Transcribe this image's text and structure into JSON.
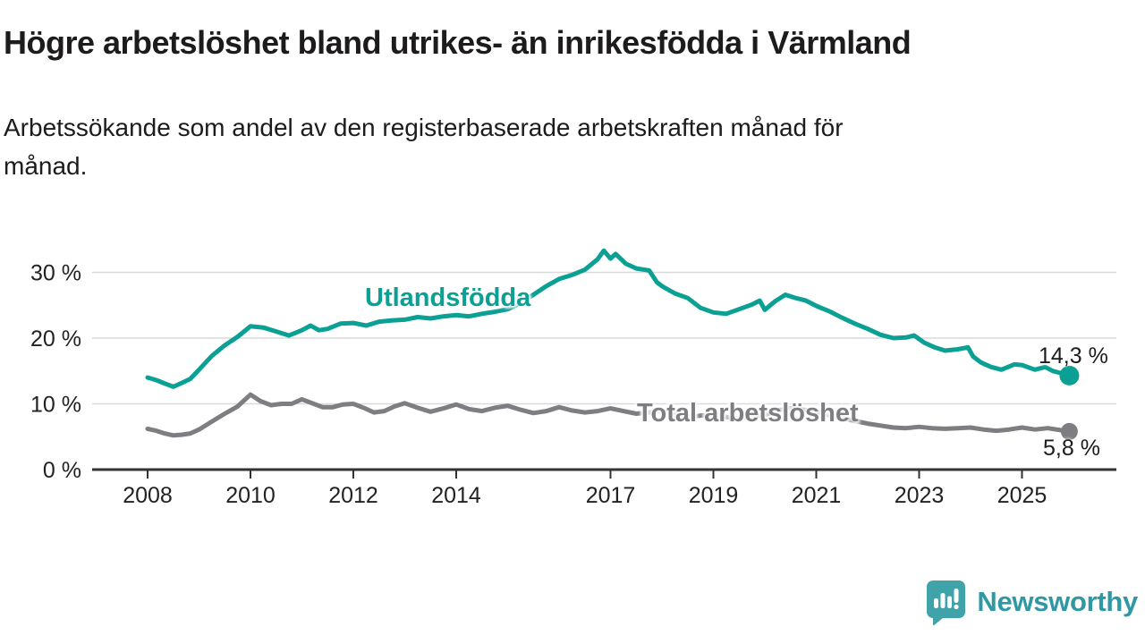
{
  "title": "Högre arbetslöshet bland utrikes- än inrikesfödda i Värmland",
  "subtitle_line1": "Arbetssökande som andel av den registerbaserade arbetskraften månad för",
  "subtitle_line2": "månad.",
  "branding": {
    "name": "Newsworthy",
    "icon": "speech-bubble-bar-chart-icon",
    "icon_color": "#41a3aa",
    "text_color": "#2f98a2"
  },
  "chart_data": {
    "type": "line",
    "title": "Högre arbetslöshet bland utrikes- än inrikesfödda i Värmland",
    "xlabel": "",
    "ylabel": "Arbetssökande som andel av den registerbaserade arbetskraften (%)",
    "xlim": [
      2006.9,
      2026.5
    ],
    "ylim": [
      0,
      34
    ],
    "grid": "horizontal",
    "legend_position": "inline-labels",
    "axis_color": "#333333",
    "grid_color": "#d9d9d9",
    "y_ticks": [
      {
        "value": 0,
        "label": "0 %"
      },
      {
        "value": 10,
        "label": "10 %"
      },
      {
        "value": 20,
        "label": "20 %"
      },
      {
        "value": 30,
        "label": "30 %"
      }
    ],
    "x_ticks": [
      {
        "value": 2008,
        "label": "2008"
      },
      {
        "value": 2010,
        "label": "2010"
      },
      {
        "value": 2012,
        "label": "2012"
      },
      {
        "value": 2014,
        "label": "2014"
      },
      {
        "value": 2017,
        "label": "2017"
      },
      {
        "value": 2019,
        "label": "2019"
      },
      {
        "value": 2021,
        "label": "2021"
      },
      {
        "value": 2023,
        "label": "2023"
      },
      {
        "value": 2025,
        "label": "2025"
      }
    ],
    "series": [
      {
        "name": "Utlandsfödda",
        "color": "#0aa093",
        "end_label": "14,3 %",
        "end_value": 14.3,
        "points": [
          [
            2008.0,
            14.0
          ],
          [
            2008.17,
            13.6
          ],
          [
            2008.33,
            13.1
          ],
          [
            2008.5,
            12.6
          ],
          [
            2008.67,
            13.2
          ],
          [
            2008.83,
            13.8
          ],
          [
            2009.0,
            15.2
          ],
          [
            2009.25,
            17.3
          ],
          [
            2009.5,
            18.9
          ],
          [
            2009.75,
            20.2
          ],
          [
            2010.0,
            21.8
          ],
          [
            2010.25,
            21.6
          ],
          [
            2010.5,
            21.0
          ],
          [
            2010.75,
            20.4
          ],
          [
            2011.0,
            21.2
          ],
          [
            2011.17,
            21.9
          ],
          [
            2011.33,
            21.2
          ],
          [
            2011.5,
            21.4
          ],
          [
            2011.75,
            22.2
          ],
          [
            2012.0,
            22.3
          ],
          [
            2012.25,
            21.9
          ],
          [
            2012.5,
            22.5
          ],
          [
            2012.75,
            22.7
          ],
          [
            2013.0,
            22.8
          ],
          [
            2013.25,
            23.2
          ],
          [
            2013.5,
            23.0
          ],
          [
            2013.75,
            23.3
          ],
          [
            2014.0,
            23.5
          ],
          [
            2014.25,
            23.3
          ],
          [
            2014.5,
            23.7
          ],
          [
            2014.75,
            24.0
          ],
          [
            2015.0,
            24.4
          ],
          [
            2015.25,
            25.3
          ],
          [
            2015.5,
            26.6
          ],
          [
            2015.75,
            27.9
          ],
          [
            2016.0,
            29.0
          ],
          [
            2016.25,
            29.6
          ],
          [
            2016.5,
            30.4
          ],
          [
            2016.75,
            32.0
          ],
          [
            2016.87,
            33.3
          ],
          [
            2017.0,
            32.1
          ],
          [
            2017.1,
            32.8
          ],
          [
            2017.3,
            31.3
          ],
          [
            2017.5,
            30.6
          ],
          [
            2017.75,
            30.3
          ],
          [
            2017.9,
            28.5
          ],
          [
            2018.0,
            27.9
          ],
          [
            2018.25,
            26.8
          ],
          [
            2018.5,
            26.1
          ],
          [
            2018.75,
            24.6
          ],
          [
            2019.0,
            23.9
          ],
          [
            2019.25,
            23.7
          ],
          [
            2019.5,
            24.4
          ],
          [
            2019.75,
            25.1
          ],
          [
            2019.9,
            25.7
          ],
          [
            2020.0,
            24.3
          ],
          [
            2020.2,
            25.6
          ],
          [
            2020.4,
            26.6
          ],
          [
            2020.6,
            26.1
          ],
          [
            2020.8,
            25.7
          ],
          [
            2021.0,
            24.9
          ],
          [
            2021.25,
            24.1
          ],
          [
            2021.5,
            23.1
          ],
          [
            2021.75,
            22.2
          ],
          [
            2022.0,
            21.4
          ],
          [
            2022.25,
            20.5
          ],
          [
            2022.5,
            20.0
          ],
          [
            2022.75,
            20.1
          ],
          [
            2022.9,
            20.4
          ],
          [
            2023.1,
            19.3
          ],
          [
            2023.3,
            18.6
          ],
          [
            2023.5,
            18.1
          ],
          [
            2023.75,
            18.3
          ],
          [
            2023.95,
            18.6
          ],
          [
            2024.05,
            17.2
          ],
          [
            2024.2,
            16.3
          ],
          [
            2024.4,
            15.6
          ],
          [
            2024.6,
            15.2
          ],
          [
            2024.85,
            16.0
          ],
          [
            2025.0,
            15.9
          ],
          [
            2025.25,
            15.2
          ],
          [
            2025.45,
            15.6
          ],
          [
            2025.6,
            15.0
          ],
          [
            2025.75,
            14.7
          ],
          [
            2025.92,
            14.3
          ]
        ]
      },
      {
        "name": "Total arbetslöshet",
        "color": "#7d7d82",
        "end_label": "5,8 %",
        "end_value": 5.8,
        "points": [
          [
            2008.0,
            6.2
          ],
          [
            2008.17,
            5.9
          ],
          [
            2008.33,
            5.5
          ],
          [
            2008.5,
            5.2
          ],
          [
            2008.67,
            5.3
          ],
          [
            2008.83,
            5.5
          ],
          [
            2009.0,
            6.1
          ],
          [
            2009.25,
            7.3
          ],
          [
            2009.5,
            8.5
          ],
          [
            2009.75,
            9.6
          ],
          [
            2010.0,
            11.4
          ],
          [
            2010.2,
            10.4
          ],
          [
            2010.4,
            9.8
          ],
          [
            2010.6,
            10.0
          ],
          [
            2010.8,
            10.0
          ],
          [
            2011.0,
            10.7
          ],
          [
            2011.2,
            10.1
          ],
          [
            2011.4,
            9.5
          ],
          [
            2011.6,
            9.5
          ],
          [
            2011.8,
            9.9
          ],
          [
            2012.0,
            10.0
          ],
          [
            2012.2,
            9.4
          ],
          [
            2012.4,
            8.7
          ],
          [
            2012.6,
            8.9
          ],
          [
            2012.8,
            9.6
          ],
          [
            2013.0,
            10.1
          ],
          [
            2013.25,
            9.4
          ],
          [
            2013.5,
            8.8
          ],
          [
            2013.75,
            9.3
          ],
          [
            2014.0,
            9.9
          ],
          [
            2014.25,
            9.2
          ],
          [
            2014.5,
            8.9
          ],
          [
            2014.75,
            9.4
          ],
          [
            2015.0,
            9.7
          ],
          [
            2015.25,
            9.1
          ],
          [
            2015.5,
            8.6
          ],
          [
            2015.75,
            8.9
          ],
          [
            2016.0,
            9.5
          ],
          [
            2016.25,
            9.0
          ],
          [
            2016.5,
            8.7
          ],
          [
            2016.75,
            8.9
          ],
          [
            2017.0,
            9.3
          ],
          [
            2017.25,
            8.9
          ],
          [
            2017.5,
            8.5
          ],
          [
            2017.75,
            8.7
          ],
          [
            2018.0,
            8.9
          ],
          [
            2018.25,
            8.4
          ],
          [
            2018.5,
            8.0
          ],
          [
            2018.75,
            8.2
          ],
          [
            2019.0,
            8.4
          ],
          [
            2019.25,
            8.0
          ],
          [
            2019.5,
            7.8
          ],
          [
            2019.75,
            8.1
          ],
          [
            2020.0,
            8.3
          ],
          [
            2020.25,
            9.0
          ],
          [
            2020.5,
            9.3
          ],
          [
            2020.75,
            9.1
          ],
          [
            2021.0,
            8.8
          ],
          [
            2021.25,
            8.3
          ],
          [
            2021.5,
            7.8
          ],
          [
            2021.75,
            7.4
          ],
          [
            2022.0,
            7.0
          ],
          [
            2022.25,
            6.7
          ],
          [
            2022.5,
            6.4
          ],
          [
            2022.75,
            6.3
          ],
          [
            2023.0,
            6.5
          ],
          [
            2023.25,
            6.3
          ],
          [
            2023.5,
            6.2
          ],
          [
            2023.75,
            6.3
          ],
          [
            2024.0,
            6.4
          ],
          [
            2024.25,
            6.1
          ],
          [
            2024.5,
            5.9
          ],
          [
            2024.75,
            6.1
          ],
          [
            2025.0,
            6.4
          ],
          [
            2025.25,
            6.1
          ],
          [
            2025.5,
            6.3
          ],
          [
            2025.75,
            6.0
          ],
          [
            2025.92,
            5.8
          ]
        ]
      }
    ]
  }
}
